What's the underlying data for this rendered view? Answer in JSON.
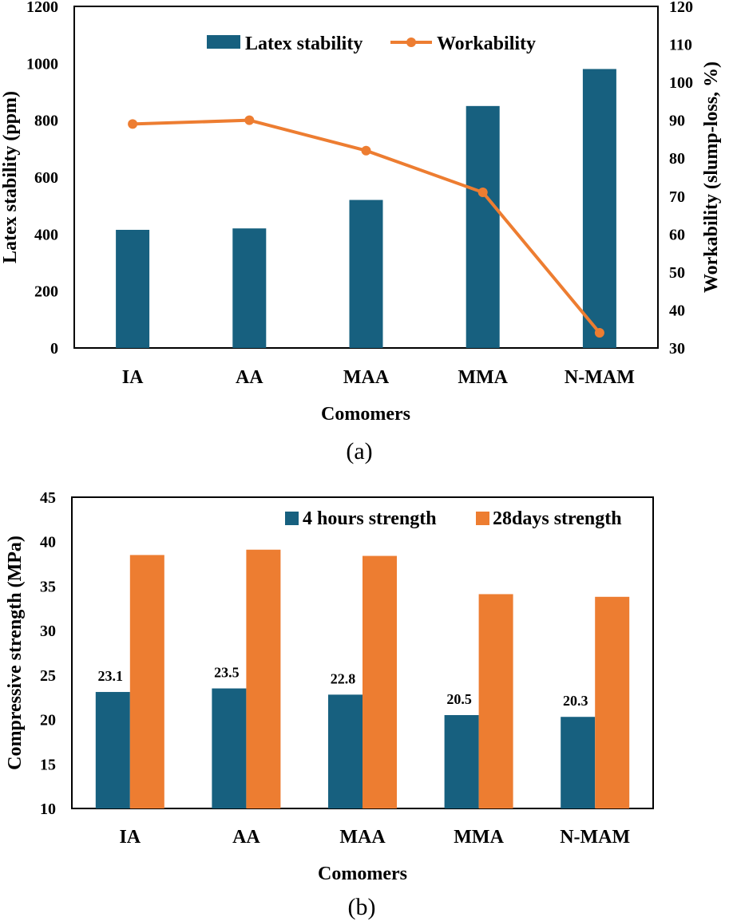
{
  "chart_data": [
    {
      "type": "bar+line",
      "panel_label": "(a)",
      "categories": [
        "IA",
        "AA",
        "MAA",
        "MMA",
        "N-MAM"
      ],
      "xlabel": "Comomers",
      "ylabel": "Latex stability (ppm)",
      "y2label": "Workability (slump-loss, %)",
      "ylim": [
        0,
        1200
      ],
      "yticks": [
        0,
        200,
        400,
        600,
        800,
        1000,
        1200
      ],
      "y2lim": [
        30,
        120
      ],
      "y2ticks": [
        30,
        40,
        50,
        60,
        70,
        80,
        90,
        100,
        110,
        120
      ],
      "legend_position": "top",
      "series": [
        {
          "name": "Latex stability",
          "type": "bar",
          "axis": "left",
          "color": "#17607f",
          "values": [
            415,
            420,
            520,
            850,
            980
          ]
        },
        {
          "name": "Workability",
          "type": "line",
          "axis": "right",
          "color": "#ed7d31",
          "values": [
            89,
            90,
            82,
            71,
            34
          ]
        }
      ]
    },
    {
      "type": "bar",
      "panel_label": "(b)",
      "categories": [
        "IA",
        "AA",
        "MAA",
        "MMA",
        "N-MAM"
      ],
      "xlabel": "Comomers",
      "ylabel": "Compressive strength (MPa)",
      "ylim": [
        10,
        45
      ],
      "yticks": [
        10,
        15,
        20,
        25,
        30,
        35,
        40,
        45
      ],
      "legend_position": "top-right",
      "series": [
        {
          "name": "4 hours strength",
          "color": "#17607f",
          "values": [
            23.1,
            23.5,
            22.8,
            20.5,
            20.3
          ],
          "labels": [
            "23.1",
            "23.5",
            "22.8",
            "20.5",
            "20.3"
          ]
        },
        {
          "name": "28days strength",
          "color": "#ed7d31",
          "values": [
            38.5,
            39.1,
            38.4,
            34.1,
            33.8
          ]
        }
      ]
    }
  ]
}
